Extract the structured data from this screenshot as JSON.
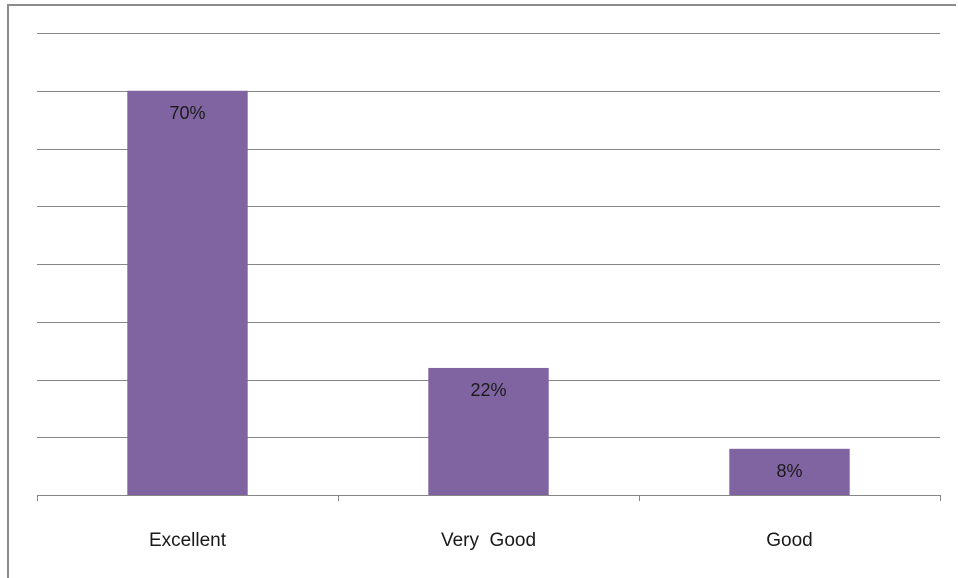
{
  "chart_data": {
    "type": "bar",
    "categories": [
      "Excellent",
      "Very  Good",
      "Good"
    ],
    "values": [
      70,
      22,
      8
    ],
    "data_labels": [
      "70%",
      "22%",
      "8%"
    ],
    "title": "",
    "xlabel": "",
    "ylabel": "",
    "ylim": [
      0,
      80
    ],
    "grid": true,
    "legend": "none",
    "bar_color": "#8064A2",
    "grid_color": "#868686"
  }
}
